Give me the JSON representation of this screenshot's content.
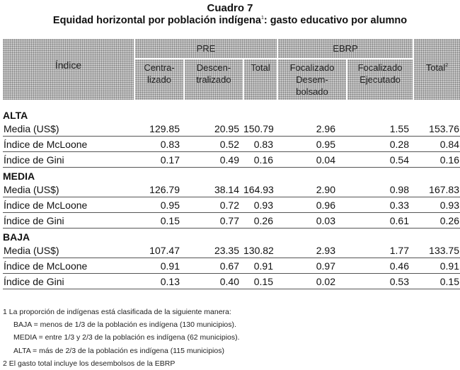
{
  "title": "Cuadro 7",
  "subtitle": "Equidad horizontal por población indígena",
  "subtitle_sup": "1",
  "subtitle_tail": ": gasto educativo por alumno",
  "header": {
    "indice": "Índice",
    "pre": "PRE",
    "ebrp": "EBRP",
    "centralizado": [
      "Centra-",
      "lizado"
    ],
    "descentralizado": [
      "Descen-",
      "tralizado"
    ],
    "total": "Total",
    "focalizado_desembolsado": [
      "Focalizado",
      "Desem-",
      "bolsado"
    ],
    "focalizado_ejecutado": [
      "Focalizado",
      "Ejecutado"
    ],
    "total2": "Total",
    "total2_sup": "2"
  },
  "sections": [
    {
      "name": "ALTA",
      "rows": [
        {
          "label": "Media (US$)",
          "values": [
            "129.85",
            "20.95",
            "150.79",
            "2.96",
            "1.55",
            "153.76"
          ]
        },
        {
          "label": "Índice de McLoone",
          "values": [
            "0.83",
            "0.52",
            "0.83",
            "0.95",
            "0.28",
            "0.84"
          ]
        },
        {
          "label": "Índice de Gini",
          "values": [
            "0.17",
            "0.49",
            "0.16",
            "0.04",
            "0.54",
            "0.16"
          ]
        }
      ]
    },
    {
      "name": "MEDIA",
      "rows": [
        {
          "label": "Media (US$)",
          "values": [
            "126.79",
            "38.14",
            "164.93",
            "2.90",
            "0.98",
            "167.83"
          ]
        },
        {
          "label": "Índice de McLoone",
          "values": [
            "0.95",
            "0.72",
            "0.93",
            "0.96",
            "0.33",
            "0.93"
          ]
        },
        {
          "label": "Índice de Gini",
          "values": [
            "0.15",
            "0.77",
            "0.26",
            "0.03",
            "0.61",
            "0.26"
          ]
        }
      ]
    },
    {
      "name": "BAJA",
      "rows": [
        {
          "label": "Media (US$)",
          "values": [
            "107.47",
            "23.35",
            "130.82",
            "2.93",
            "1.77",
            "133.75"
          ]
        },
        {
          "label": "Índice de McLoone",
          "values": [
            "0.91",
            "0.67",
            "0.91",
            "0.97",
            "0.46",
            "0.91"
          ]
        },
        {
          "label": "Índice de Gini",
          "values": [
            "0.13",
            "0.40",
            "0.15",
            "0.02",
            "0.53",
            "0.15"
          ]
        }
      ]
    }
  ],
  "notes": [
    "1  La proporción de indígenas está clasificada de la siguiente manera:",
    "BAJA =  menos de 1/3 de la población es indígena (130 municipios).",
    "MEDIA = entre 1/3  y 2/3 de la población es indígena (62 municipios).",
    "ALTA = más de 2/3 de la población es indígena (115 municipios)",
    "2  El gasto total incluye los desembolsos de la EBRP"
  ]
}
